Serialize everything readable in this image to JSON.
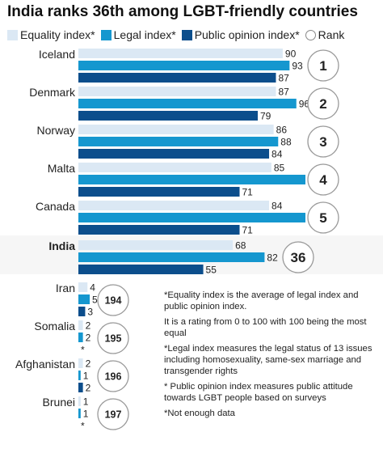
{
  "title": "India ranks 36th among LGBT-friendly countries",
  "legend": [
    {
      "label": "Equality index*",
      "color": "#dbe8f4"
    },
    {
      "label": "Legal index*",
      "color": "#1597cf"
    },
    {
      "label": "Public opinion index*",
      "color": "#0c4e8c"
    },
    {
      "label": "Rank",
      "color": "#888888"
    }
  ],
  "notes": [
    "*Equality index is the average of legal index and public opinion index.",
    "It is a rating from 0 to 100 with 100 being the most equal",
    "*Legal index measures the legal status of 13 issues including homosexuality, same-sex marriage and transgender rights",
    "* Public opinion index measures public attitude towards LGBT people based on surveys",
    "*Not enough data"
  ],
  "chart_data": {
    "type": "bar",
    "orientation": "horizontal",
    "categories": [
      "Iceland",
      "Denmark",
      "Norway",
      "Malta",
      "Canada",
      "India",
      "Iran",
      "Somalia",
      "Afghanistan",
      "Brunei"
    ],
    "highlight": "India",
    "xlim": [
      0,
      100
    ],
    "series": [
      {
        "name": "Equality index*",
        "color": "#dbe8f4",
        "values": [
          90,
          87,
          86,
          85,
          84,
          68,
          4,
          2,
          2,
          1
        ],
        "labels": [
          "90",
          "87",
          "86",
          "85",
          "84",
          "68",
          "4",
          "2",
          "2",
          "1"
        ]
      },
      {
        "name": "Legal index*",
        "color": "#1597cf",
        "values": [
          93,
          96,
          88,
          100,
          100,
          82,
          5,
          2,
          1,
          1
        ],
        "labels": [
          "93",
          "96",
          "88",
          "100",
          "100",
          "82",
          "5",
          "2",
          "1",
          "1"
        ]
      },
      {
        "name": "Public opinion index*",
        "color": "#0c4e8c",
        "values": [
          87,
          79,
          84,
          71,
          71,
          55,
          3,
          null,
          2,
          null
        ],
        "labels": [
          "87",
          "79",
          "84",
          "71",
          "71",
          "55",
          "3",
          "*",
          "2",
          "*"
        ]
      }
    ],
    "rank": [
      1,
      2,
      3,
      4,
      5,
      36,
      194,
      195,
      196,
      197
    ],
    "rank_labels": [
      "1",
      "2",
      "3",
      "4",
      "5",
      "36",
      "194",
      "195",
      "196",
      "197"
    ]
  }
}
